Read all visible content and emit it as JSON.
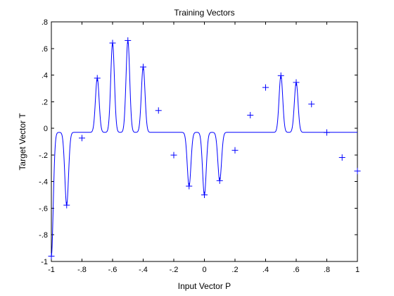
{
  "chart_data": {
    "type": "line",
    "title": "Training Vectors",
    "xlabel": "Input Vector P",
    "ylabel": "Target Vector T",
    "xlim": [
      -1,
      1
    ],
    "ylim": [
      -1,
      0.8
    ],
    "xticks": [
      -1,
      -0.8,
      -0.6,
      -0.4,
      -0.2,
      0,
      0.2,
      0.4,
      0.6,
      0.8,
      1
    ],
    "yticks": [
      -1,
      -0.8,
      -0.6,
      -0.4,
      -0.2,
      0,
      0.2,
      0.4,
      0.6,
      0.8
    ],
    "grid": false,
    "line_color": "#0000ff",
    "marker_color": "#0000ff",
    "series": [
      {
        "type": "scatter",
        "marker": "+",
        "x": [
          -1.0,
          -0.9,
          -0.8,
          -0.7,
          -0.6,
          -0.5,
          -0.4,
          -0.3,
          -0.2,
          -0.1,
          0.0,
          0.1,
          0.2,
          0.3,
          0.4,
          0.5,
          0.6,
          0.7,
          0.8,
          0.9,
          1.0
        ],
        "y": [
          -0.96,
          -0.577,
          -0.073,
          0.377,
          0.641,
          0.66,
          0.461,
          0.134,
          -0.201,
          -0.434,
          -0.5,
          -0.393,
          -0.165,
          0.099,
          0.307,
          0.396,
          0.345,
          0.182,
          -0.031,
          -0.219,
          -0.321
        ]
      },
      {
        "type": "line",
        "baseline": -0.03,
        "x": [
          -1.0,
          -0.9,
          -0.7,
          -0.6,
          -0.5,
          -0.4,
          -0.1,
          0.0,
          0.1,
          0.5,
          0.6
        ],
        "y": [
          -0.96,
          -0.577,
          0.377,
          0.641,
          0.66,
          0.461,
          -0.434,
          -0.5,
          -0.393,
          0.396,
          0.345
        ]
      }
    ]
  }
}
